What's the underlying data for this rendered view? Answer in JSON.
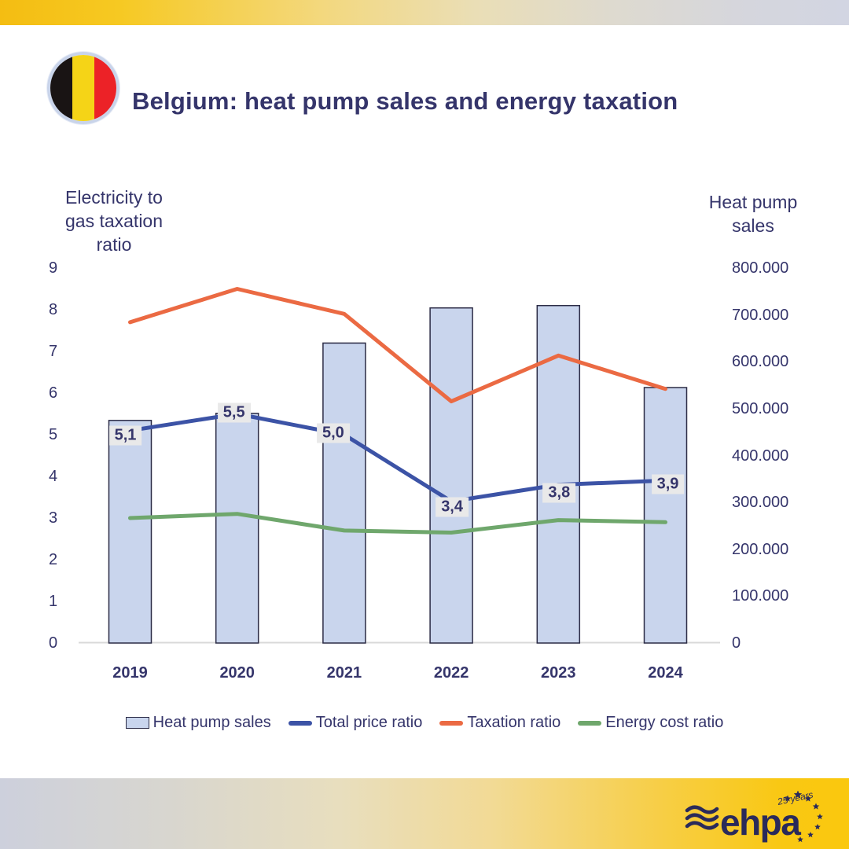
{
  "header": {
    "title": "Belgium: heat pump sales and energy taxation",
    "flag": {
      "name": "belgium-flag",
      "stripes": [
        "#191414",
        "#F5D417",
        "#EC2227"
      ],
      "ring": "#C9D4EA"
    }
  },
  "left_axis": {
    "title_lines": [
      "Electricity to",
      "gas taxation",
      "ratio"
    ],
    "ticks": [
      "9",
      "8",
      "7",
      "6",
      "5",
      "4",
      "3",
      "2",
      "1",
      "0"
    ]
  },
  "right_axis": {
    "title_lines": [
      "Heat pump",
      "sales"
    ],
    "ticks": [
      "800.000",
      "700.000",
      "600.000",
      "500.000",
      "400.000",
      "300.000",
      "200.000",
      "100.000",
      "0"
    ]
  },
  "chart_data": {
    "type": "bar+line combo",
    "title": "Belgium: heat pump sales and energy taxation",
    "categories": [
      "2019",
      "2020",
      "2021",
      "2022",
      "2023",
      "2024"
    ],
    "left_axis_label": "Electricity to gas taxation ratio",
    "right_axis_label": "Heat pump sales",
    "left_axis_range": [
      0,
      9
    ],
    "right_axis_range": [
      0,
      800000
    ],
    "grid": false,
    "legend_position": "bottom",
    "series": [
      {
        "name": "Heat pump sales",
        "type": "bar",
        "axis": "right",
        "color": "#C9D5ED",
        "border": "#2B2B45",
        "values": [
          475000,
          490000,
          640000,
          715000,
          720000,
          545000
        ]
      },
      {
        "name": "Total price ratio",
        "type": "line",
        "axis": "left",
        "color": "#3C53A6",
        "values": [
          5.1,
          5.5,
          5.0,
          3.4,
          3.8,
          3.9
        ],
        "labels": [
          "5,1",
          "5,5",
          "5,0",
          "3,4",
          "3,8",
          "3,9"
        ]
      },
      {
        "name": "Taxation ratio",
        "type": "line",
        "axis": "left",
        "color": "#EB6A43",
        "values": [
          7.7,
          8.5,
          7.9,
          5.8,
          6.9,
          6.1
        ]
      },
      {
        "name": "Energy cost ratio",
        "type": "line",
        "axis": "left",
        "color": "#6FA76C",
        "values": [
          3.0,
          3.1,
          2.7,
          2.65,
          2.95,
          2.9
        ]
      }
    ]
  },
  "footer": {
    "brand": "ehpa",
    "badge": "25 years"
  },
  "colors": {
    "text_navy": "#35356B",
    "bar_fill": "#C9D5ED",
    "bar_border": "#2B2B45",
    "line_blue": "#3C53A6",
    "line_orange": "#EB6A43",
    "line_green": "#6FA76C",
    "data_label_bg": "#E9E9E9",
    "axis_line": "#D9D9D9",
    "gradient_gold": "#F6C41A",
    "gradient_gray": "#D2D5E0",
    "logo_navy": "#2A2A5A"
  }
}
